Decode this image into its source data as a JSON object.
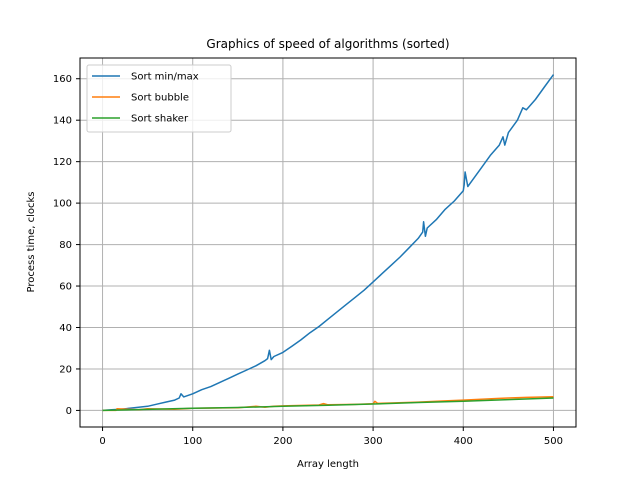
{
  "chart_data": {
    "type": "line",
    "title": "Graphics of speed of algorithms (sorted)",
    "xlabel": "Array length",
    "ylabel": "Process time, clocks",
    "xlim": [
      -25,
      525
    ],
    "ylim": [
      -8,
      170
    ],
    "xticks": [
      0,
      100,
      200,
      300,
      400,
      500
    ],
    "yticks": [
      0,
      20,
      40,
      60,
      80,
      100,
      120,
      140,
      160
    ],
    "grid": true,
    "legend_position": "top-left",
    "series": [
      {
        "name": "Sort min/max",
        "color": "#1f77b4",
        "x": [
          0,
          10,
          20,
          30,
          40,
          50,
          60,
          70,
          80,
          85,
          87,
          90,
          100,
          110,
          120,
          130,
          140,
          150,
          160,
          170,
          180,
          183,
          185,
          187,
          190,
          200,
          210,
          220,
          230,
          240,
          250,
          260,
          270,
          280,
          290,
          300,
          310,
          320,
          330,
          340,
          350,
          355,
          356,
          358,
          360,
          370,
          380,
          390,
          400,
          401,
          402,
          405,
          410,
          420,
          430,
          440,
          444,
          446,
          450,
          460,
          466,
          470,
          480,
          490,
          500
        ],
        "y": [
          0,
          0.3,
          0.6,
          1.0,
          1.5,
          2.0,
          3.0,
          4.0,
          5.0,
          6.0,
          8.0,
          6.5,
          8.0,
          10.0,
          11.5,
          13.5,
          15.5,
          17.5,
          19.5,
          21.5,
          24.0,
          25.0,
          29.0,
          24.5,
          26.0,
          28.0,
          31.0,
          34.0,
          37.5,
          40.5,
          44.0,
          47.5,
          51.0,
          54.5,
          58.0,
          62.0,
          66.0,
          70.0,
          74.0,
          78.5,
          83.0,
          86.0,
          91.0,
          84.0,
          88.0,
          92.0,
          97.0,
          101.0,
          106.0,
          109.0,
          115.0,
          108.0,
          111.0,
          117.0,
          123.0,
          128.0,
          132.0,
          128.0,
          134.0,
          140.0,
          146.0,
          145.0,
          150.0,
          156.0,
          162.0
        ]
      },
      {
        "name": "Sort bubble",
        "color": "#ff7f0e",
        "x": [
          0,
          15,
          16,
          40,
          50,
          80,
          100,
          150,
          170,
          180,
          190,
          200,
          240,
          245,
          250,
          280,
          300,
          302,
          305,
          320,
          350,
          380,
          400,
          420,
          440,
          450,
          470,
          500
        ],
        "y": [
          0,
          0,
          0.8,
          0.3,
          0.8,
          0.6,
          1.0,
          1.3,
          2.0,
          1.5,
          2.0,
          2.2,
          2.6,
          3.3,
          2.7,
          2.9,
          3.2,
          4.4,
          3.4,
          3.6,
          4.0,
          4.6,
          5.0,
          5.4,
          5.8,
          6.0,
          6.3,
          6.6
        ]
      },
      {
        "name": "Sort shaker",
        "color": "#2ca02c",
        "x": [
          0,
          50,
          100,
          150,
          200,
          250,
          300,
          350,
          400,
          450,
          500
        ],
        "y": [
          0,
          0.5,
          1.0,
          1.4,
          2.0,
          2.5,
          3.1,
          3.8,
          4.4,
          5.2,
          6.0
        ]
      }
    ]
  }
}
